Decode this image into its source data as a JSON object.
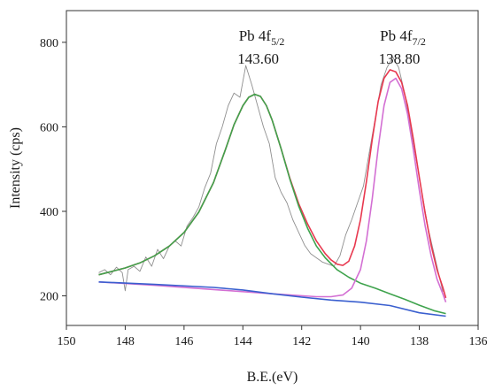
{
  "chart_data": {
    "type": "line",
    "title": "",
    "xlabel": "B.E.(eV)",
    "ylabel": "Intensity (cps)",
    "xlim": [
      150,
      136
    ],
    "ylim": [
      130,
      875
    ],
    "x_reversed": true,
    "x_ticks": [
      150,
      148,
      146,
      144,
      142,
      140,
      138,
      136
    ],
    "y_ticks": [
      200,
      400,
      600,
      800
    ],
    "grid": false,
    "legend": "none",
    "annotations": [
      {
        "name": "pb-4f52",
        "main": "Pb 4f",
        "sub": "5/2",
        "value": "143.60",
        "x": 143.6
      },
      {
        "name": "pb-4f72",
        "main": "Pb 4f",
        "sub": "7/2",
        "value": "138.80",
        "x": 138.8
      }
    ],
    "series": [
      {
        "role": "raw",
        "color": "#8f8f8f",
        "x": [
          148.9,
          148.7,
          148.5,
          148.3,
          148.1,
          148.0,
          147.9,
          147.7,
          147.5,
          147.3,
          147.1,
          146.9,
          146.7,
          146.5,
          146.3,
          146.1,
          145.9,
          145.7,
          145.5,
          145.3,
          145.1,
          144.9,
          144.7,
          144.5,
          144.3,
          144.1,
          143.9,
          143.7,
          143.5,
          143.3,
          143.1,
          142.9,
          142.7,
          142.5,
          142.3,
          142.1,
          141.9,
          141.7,
          141.5,
          141.3,
          141.1,
          140.9,
          140.7,
          140.5,
          140.3,
          140.1,
          139.9,
          139.7,
          139.5,
          139.3,
          139.1,
          138.9,
          138.7,
          138.5,
          138.3,
          138.1,
          137.9,
          137.7,
          137.5,
          137.3,
          137.2
        ],
        "y": [
          255,
          262,
          250,
          268,
          255,
          212,
          262,
          270,
          258,
          292,
          270,
          310,
          288,
          318,
          330,
          318,
          365,
          385,
          410,
          455,
          490,
          560,
          600,
          650,
          680,
          670,
          745,
          700,
          650,
          600,
          560,
          480,
          445,
          420,
          380,
          350,
          320,
          300,
          290,
          280,
          275,
          270,
          295,
          345,
          380,
          420,
          460,
          540,
          620,
          700,
          740,
          765,
          740,
          680,
          600,
          520,
          440,
          360,
          300,
          240,
          210
        ]
      },
      {
        "role": "envelope",
        "color": "#e8384f",
        "x": [
          148.9,
          148.5,
          148.0,
          147.5,
          147.0,
          146.5,
          146.0,
          145.5,
          145.0,
          144.6,
          144.3,
          144.0,
          143.8,
          143.6,
          143.4,
          143.2,
          143.0,
          142.7,
          142.4,
          142.1,
          141.8,
          141.5,
          141.2,
          141.0,
          140.8,
          140.6,
          140.4,
          140.2,
          140.0,
          139.8,
          139.6,
          139.4,
          139.2,
          139.0,
          138.8,
          138.6,
          138.4,
          138.2,
          138.0,
          137.8,
          137.6,
          137.4,
          137.2,
          137.1
        ],
        "y": [
          250,
          257,
          266,
          278,
          295,
          318,
          350,
          398,
          468,
          545,
          605,
          650,
          670,
          677,
          672,
          650,
          615,
          548,
          478,
          418,
          370,
          330,
          300,
          285,
          275,
          272,
          282,
          318,
          380,
          470,
          570,
          660,
          715,
          735,
          730,
          705,
          650,
          570,
          480,
          395,
          320,
          262,
          220,
          195
        ]
      },
      {
        "role": "component-4f5/2",
        "color": "#3fa34d",
        "x": [
          148.9,
          148.5,
          148.0,
          147.5,
          147.0,
          146.5,
          146.0,
          145.5,
          145.0,
          144.6,
          144.3,
          144.0,
          143.8,
          143.6,
          143.4,
          143.2,
          143.0,
          142.7,
          142.4,
          142.1,
          141.8,
          141.5,
          141.2,
          140.8,
          140.4,
          140.0,
          139.5,
          139.0,
          138.5,
          138.0,
          137.5,
          137.1
        ],
        "y": [
          250,
          257,
          266,
          278,
          295,
          318,
          350,
          398,
          468,
          545,
          605,
          650,
          670,
          677,
          672,
          650,
          615,
          548,
          476,
          412,
          360,
          318,
          290,
          262,
          244,
          230,
          218,
          205,
          192,
          178,
          165,
          158
        ]
      },
      {
        "role": "component-4f7/2",
        "color": "#d36fd3",
        "x": [
          148.9,
          147.0,
          145.0,
          143.0,
          141.5,
          141.0,
          140.6,
          140.3,
          140.0,
          139.8,
          139.6,
          139.4,
          139.2,
          139.0,
          138.8,
          138.6,
          138.4,
          138.2,
          138.0,
          137.8,
          137.6,
          137.4,
          137.2,
          137.1
        ],
        "y": [
          233,
          225,
          215,
          205,
          198,
          198,
          202,
          218,
          262,
          330,
          430,
          550,
          650,
          705,
          715,
          690,
          630,
          545,
          450,
          365,
          295,
          240,
          205,
          185
        ]
      },
      {
        "role": "background",
        "color": "#3a5fcf",
        "x": [
          148.9,
          147.0,
          145.0,
          144.0,
          143.0,
          142.0,
          141.0,
          140.0,
          139.0,
          138.0,
          137.1
        ],
        "y": [
          233,
          227,
          220,
          214,
          205,
          197,
          190,
          185,
          177,
          160,
          152
        ]
      }
    ]
  }
}
